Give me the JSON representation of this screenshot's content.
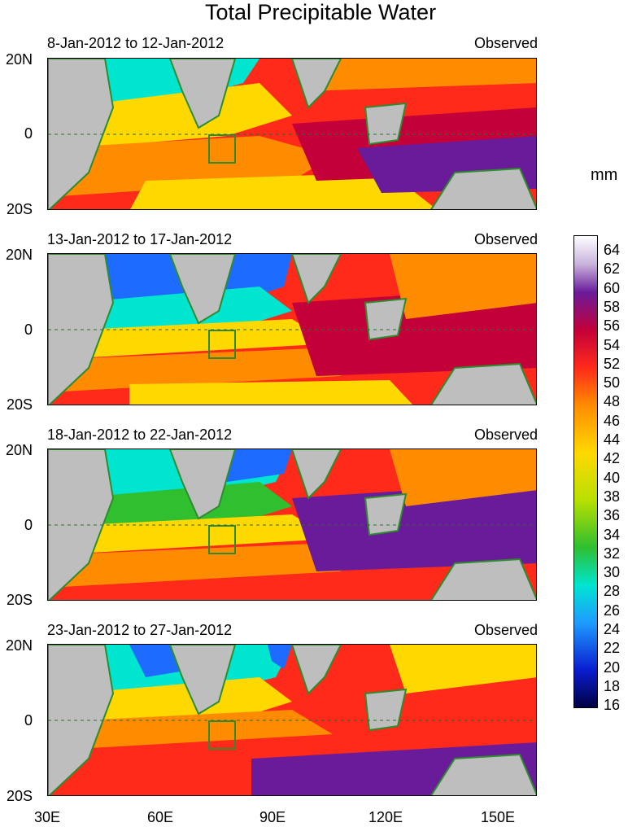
{
  "title": "Total Precipitable Water",
  "unit_label": "mm",
  "panels": [
    {
      "date_range": "8-Jan-2012 to 12-Jan-2012",
      "label": "Observed"
    },
    {
      "date_range": "13-Jan-2012 to 17-Jan-2012",
      "label": "Observed"
    },
    {
      "date_range": "18-Jan-2012 to 22-Jan-2012",
      "label": "Observed"
    },
    {
      "date_range": "23-Jan-2012 to 27-Jan-2012",
      "label": "Observed"
    }
  ],
  "lat_labels": {
    "north": "20N",
    "equator": "0",
    "south": "20S"
  },
  "lon_labels": [
    "30E",
    "60E",
    "90E",
    "120E",
    "150E"
  ],
  "colorbar_labels": [
    "64",
    "62",
    "60",
    "58",
    "56",
    "54",
    "52",
    "50",
    "48",
    "46",
    "44",
    "42",
    "40",
    "38",
    "36",
    "34",
    "32",
    "30",
    "28",
    "26",
    "24",
    "22",
    "20",
    "18",
    "16"
  ],
  "colors": {
    "land": "#bebebe",
    "coast": "#2e8b2e",
    "ocean_bands": [
      "#00e5d0",
      "#ffd800",
      "#ff8c00",
      "#ff2a1a",
      "#c3003a",
      "#6a1b9a"
    ]
  }
}
